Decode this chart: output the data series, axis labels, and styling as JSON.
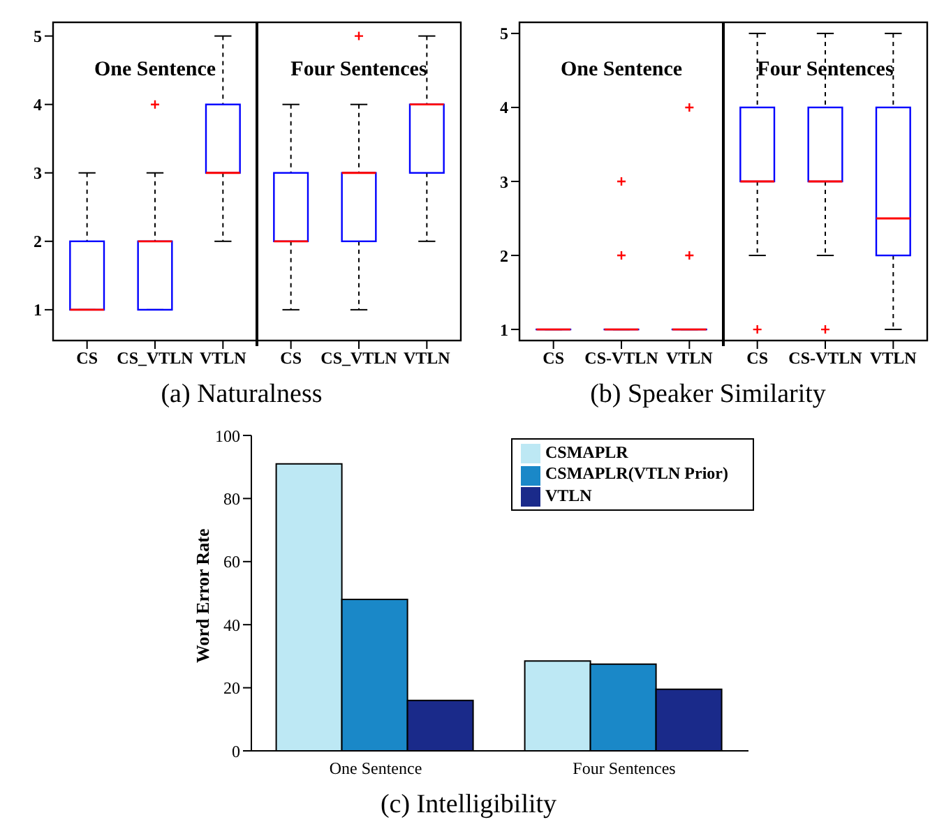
{
  "chart_data": [
    {
      "type": "box",
      "title": "(a) Naturalness",
      "categories": [
        "CS",
        "CS_VTLN",
        "VTLN",
        "CS",
        "CS_VTLN",
        "VTLN"
      ],
      "annotations": [
        "One Sentence",
        "Four Sentences"
      ],
      "ylim": [
        0.55,
        5.2
      ],
      "yticks": [
        1,
        2,
        3,
        4,
        5
      ],
      "series": [
        {
          "color": "#0000ff",
          "boxes": [
            {
              "low": 1,
              "q1": 1,
              "median": 1,
              "q3": 2,
              "high": 3
            },
            {
              "low": 1,
              "q1": 1,
              "median": 2,
              "q3": 2,
              "high": 3,
              "outliers": [
                4
              ]
            },
            {
              "low": 2,
              "q1": 3,
              "median": 3,
              "q3": 4,
              "high": 5
            },
            {
              "low": 1,
              "q1": 2,
              "median": 2,
              "q3": 3,
              "high": 4
            },
            {
              "low": 1,
              "q1": 2,
              "median": 3,
              "q3": 3,
              "high": 4,
              "outliers": [
                5
              ]
            },
            {
              "low": 2,
              "q1": 3,
              "median": 4,
              "q3": 4,
              "high": 5
            }
          ]
        }
      ]
    },
    {
      "type": "box",
      "title": "(b) Speaker Similarity",
      "categories": [
        "CS",
        "CS-VTLN",
        "VTLN",
        "CS",
        "CS-VTLN",
        "VTLN"
      ],
      "annotations": [
        "One Sentence",
        "Four Sentences"
      ],
      "ylim": [
        0.85,
        5.15
      ],
      "yticks": [
        1,
        2,
        3,
        4,
        5
      ],
      "series": [
        {
          "color": "#0000ff",
          "boxes": [
            {
              "low": 1,
              "q1": 1,
              "median": 1,
              "q3": 1,
              "high": 1
            },
            {
              "low": 1,
              "q1": 1,
              "median": 1,
              "q3": 1,
              "high": 1,
              "outliers": [
                2,
                3
              ]
            },
            {
              "low": 1,
              "q1": 1,
              "median": 1,
              "q3": 1,
              "high": 1,
              "outliers": [
                2,
                4
              ]
            },
            {
              "low": 2,
              "q1": 3,
              "median": 3,
              "q3": 4,
              "high": 5,
              "outliers": [
                1
              ]
            },
            {
              "low": 2,
              "q1": 3,
              "median": 3,
              "q3": 4,
              "high": 5,
              "outliers": [
                1
              ]
            },
            {
              "low": 1,
              "q1": 2,
              "median": 2.5,
              "q3": 4,
              "high": 5
            }
          ]
        }
      ]
    },
    {
      "type": "bar",
      "title": "(c) Intelligibility",
      "categories": [
        "One Sentence",
        "Four Sentences"
      ],
      "ylabel": "Word Error Rate",
      "ylim": [
        0,
        100
      ],
      "yticks": [
        0,
        20,
        40,
        60,
        80,
        100
      ],
      "legend": "top right",
      "series": [
        {
          "name": "CSMAPLR",
          "color": "#bde8f4",
          "values": [
            91,
            28.5
          ]
        },
        {
          "name": "CSMAPLR(VTLN Prior)",
          "color": "#1a88c8",
          "values": [
            48,
            27.5
          ]
        },
        {
          "name": "VTLN",
          "color": "#1a2a8a",
          "values": [
            16,
            19.5
          ]
        }
      ]
    }
  ]
}
